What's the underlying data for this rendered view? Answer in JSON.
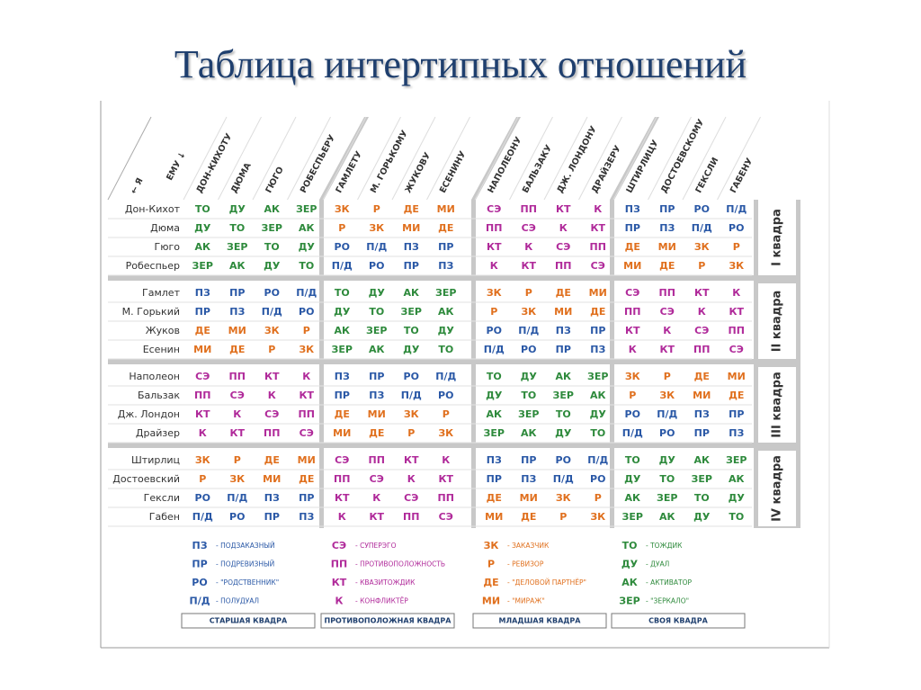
{
  "title": "Таблица интертипных отношений",
  "corner": {
    "me": "← Я",
    "him": "ЕМУ ↓"
  },
  "columns": [
    "ДОН-КИХОТУ",
    "ДЮМА",
    "ГЮГО",
    "РОБЕСПЬЕРУ",
    "ГАМЛЕТУ",
    "М. ГОРЬКОМУ",
    "ЖУКОВУ",
    "ЕСЕНИНУ",
    "НАПОЛЕОНУ",
    "БАЛЬЗАКУ",
    "ДЖ. ЛОНДОНУ",
    "ДРАЙЗЕРУ",
    "ШТИРЛИЦУ",
    "ДОСТОЕВСКОМУ",
    "ГЕКСЛИ",
    "ГАБЕНУ"
  ],
  "quadras": [
    "I квадра",
    "II квадра",
    "III квадра",
    "IV квадра"
  ],
  "rows": [
    {
      "name": "Дон-Кихот",
      "cells": [
        "ТО",
        "ДУ",
        "АК",
        "ЗЕР",
        "ЗК",
        "Р",
        "ДЕ",
        "МИ",
        "СЭ",
        "ПП",
        "КТ",
        "К",
        "ПЗ",
        "ПР",
        "РО",
        "П/Д"
      ]
    },
    {
      "name": "Дюма",
      "cells": [
        "ДУ",
        "ТО",
        "ЗЕР",
        "АК",
        "Р",
        "ЗК",
        "МИ",
        "ДЕ",
        "ПП",
        "СЭ",
        "К",
        "КТ",
        "ПР",
        "ПЗ",
        "П/Д",
        "РО"
      ]
    },
    {
      "name": "Гюго",
      "cells": [
        "АК",
        "ЗЕР",
        "ТО",
        "ДУ",
        "РО",
        "П/Д",
        "ПЗ",
        "ПР",
        "КТ",
        "К",
        "СЭ",
        "ПП",
        "ДЕ",
        "МИ",
        "ЗК",
        "Р"
      ]
    },
    {
      "name": "Робеспьер",
      "cells": [
        "ЗЕР",
        "АК",
        "ДУ",
        "ТО",
        "П/Д",
        "РО",
        "ПР",
        "ПЗ",
        "К",
        "КТ",
        "ПП",
        "СЭ",
        "МИ",
        "ДЕ",
        "Р",
        "ЗК"
      ]
    },
    {
      "name": "Гамлет",
      "cells": [
        "ПЗ",
        "ПР",
        "РО",
        "П/Д",
        "ТО",
        "ДУ",
        "АК",
        "ЗЕР",
        "ЗК",
        "Р",
        "ДЕ",
        "МИ",
        "СЭ",
        "ПП",
        "КТ",
        "К"
      ]
    },
    {
      "name": "М. Горький",
      "cells": [
        "ПР",
        "ПЗ",
        "П/Д",
        "РО",
        "ДУ",
        "ТО",
        "ЗЕР",
        "АК",
        "Р",
        "ЗК",
        "МИ",
        "ДЕ",
        "ПП",
        "СЭ",
        "К",
        "КТ"
      ]
    },
    {
      "name": "Жуков",
      "cells": [
        "ДЕ",
        "МИ",
        "ЗК",
        "Р",
        "АК",
        "ЗЕР",
        "ТО",
        "ДУ",
        "РО",
        "П/Д",
        "ПЗ",
        "ПР",
        "КТ",
        "К",
        "СЭ",
        "ПП"
      ]
    },
    {
      "name": "Есенин",
      "cells": [
        "МИ",
        "ДЕ",
        "Р",
        "ЗК",
        "ЗЕР",
        "АК",
        "ДУ",
        "ТО",
        "П/Д",
        "РО",
        "ПР",
        "ПЗ",
        "К",
        "КТ",
        "ПП",
        "СЭ"
      ]
    },
    {
      "name": "Наполеон",
      "cells": [
        "СЭ",
        "ПП",
        "КТ",
        "К",
        "ПЗ",
        "ПР",
        "РО",
        "П/Д",
        "ТО",
        "ДУ",
        "АК",
        "ЗЕР",
        "ЗК",
        "Р",
        "ДЕ",
        "МИ"
      ]
    },
    {
      "name": "Бальзак",
      "cells": [
        "ПП",
        "СЭ",
        "К",
        "КТ",
        "ПР",
        "ПЗ",
        "П/Д",
        "РО",
        "ДУ",
        "ТО",
        "ЗЕР",
        "АК",
        "Р",
        "ЗК",
        "МИ",
        "ДЕ"
      ]
    },
    {
      "name": "Дж. Лондон",
      "cells": [
        "КТ",
        "К",
        "СЭ",
        "ПП",
        "ДЕ",
        "МИ",
        "ЗК",
        "Р",
        "АК",
        "ЗЕР",
        "ТО",
        "ДУ",
        "РО",
        "П/Д",
        "ПЗ",
        "ПР"
      ]
    },
    {
      "name": "Драйзер",
      "cells": [
        "К",
        "КТ",
        "ПП",
        "СЭ",
        "МИ",
        "ДЕ",
        "Р",
        "ЗК",
        "ЗЕР",
        "АК",
        "ДУ",
        "ТО",
        "П/Д",
        "РО",
        "ПР",
        "ПЗ"
      ]
    },
    {
      "name": "Штирлиц",
      "cells": [
        "ЗК",
        "Р",
        "ДЕ",
        "МИ",
        "СЭ",
        "ПП",
        "КТ",
        "К",
        "ПЗ",
        "ПР",
        "РО",
        "П/Д",
        "ТО",
        "ДУ",
        "АК",
        "ЗЕР"
      ]
    },
    {
      "name": "Достоевский",
      "cells": [
        "Р",
        "ЗК",
        "МИ",
        "ДЕ",
        "ПП",
        "СЭ",
        "К",
        "КТ",
        "ПР",
        "ПЗ",
        "П/Д",
        "РО",
        "ДУ",
        "ТО",
        "ЗЕР",
        "АК"
      ]
    },
    {
      "name": "Гексли",
      "cells": [
        "РО",
        "П/Д",
        "ПЗ",
        "ПР",
        "КТ",
        "К",
        "СЭ",
        "ПП",
        "ДЕ",
        "МИ",
        "ЗК",
        "Р",
        "АК",
        "ЗЕР",
        "ТО",
        "ДУ"
      ]
    },
    {
      "name": "Габен",
      "cells": [
        "П/Д",
        "РО",
        "ПР",
        "ПЗ",
        "К",
        "КТ",
        "ПП",
        "СЭ",
        "МИ",
        "ДЕ",
        "Р",
        "ЗК",
        "ЗЕР",
        "АК",
        "ДУ",
        "ТО"
      ]
    }
  ],
  "legend": [
    {
      "color": "#2a58a6",
      "box": "СТАРШАЯ КВАДРА",
      "items": [
        {
          "code": "ПЗ",
          "desc": "- ПОДЗАКАЗНЫЙ"
        },
        {
          "code": "ПР",
          "desc": "- ПОДРЕВИЗНЫЙ"
        },
        {
          "code": "РО",
          "desc": "- \"РОДСТВЕННИК\""
        },
        {
          "code": "П/Д",
          "desc": "- ПОЛУДУАЛ"
        }
      ]
    },
    {
      "color": "#b02a9a",
      "box": "ПРОТИВОПОЛОЖНАЯ КВАДРА",
      "items": [
        {
          "code": "СЭ",
          "desc": "- СУПЕРЭГО"
        },
        {
          "code": "ПП",
          "desc": "- ПРОТИВОПОЛОЖНОСТЬ"
        },
        {
          "code": "КТ",
          "desc": "- КВАЗИТОЖДИК"
        },
        {
          "code": "К",
          "desc": "- КОНФЛИКТЁР"
        }
      ]
    },
    {
      "color": "#e0701e",
      "box": "МЛАДШАЯ КВАДРА",
      "items": [
        {
          "code": "ЗК",
          "desc": "- ЗАКАЗЧИК"
        },
        {
          "code": "Р",
          "desc": "- РЕВИЗОР"
        },
        {
          "code": "ДЕ",
          "desc": "- \"ДЕЛОВОЙ ПАРТНЁР\""
        },
        {
          "code": "МИ",
          "desc": "- \"МИРАЖ\""
        }
      ]
    },
    {
      "color": "#2e8a3c",
      "box": "СВОЯ КВАДРА",
      "items": [
        {
          "code": "ТО",
          "desc": "- ТОЖДИК"
        },
        {
          "code": "ДУ",
          "desc": "- ДУАЛ"
        },
        {
          "code": "АК",
          "desc": "- АКТИВАТОР"
        },
        {
          "code": "ЗЕР",
          "desc": "- \"ЗЕРКАЛО\""
        }
      ]
    }
  ]
}
